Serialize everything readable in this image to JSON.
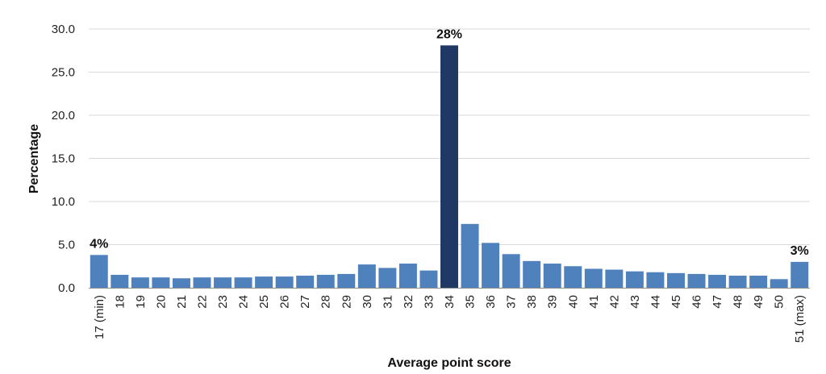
{
  "colors": {
    "bar": "#4f81bd",
    "highlight_bar": "#1f3864",
    "grid": "#d9d9d9",
    "axis": "#8c8c8c"
  },
  "chart_data": {
    "type": "bar",
    "title": "",
    "xlabel": "Average point score",
    "ylabel": "Percentage",
    "ylim": [
      0,
      30
    ],
    "yticks": [
      "0.0",
      "5.0",
      "10.0",
      "15.0",
      "20.0",
      "25.0",
      "30.0"
    ],
    "grid": "horizontal",
    "legend": "none",
    "categories": [
      "17 (min)",
      "18",
      "19",
      "20",
      "21",
      "22",
      "23",
      "24",
      "25",
      "26",
      "27",
      "28",
      "29",
      "30",
      "31",
      "32",
      "33",
      "34",
      "35",
      "36",
      "37",
      "38",
      "39",
      "40",
      "41",
      "42",
      "43",
      "44",
      "45",
      "46",
      "47",
      "48",
      "49",
      "50",
      "51 (max)"
    ],
    "values": [
      3.8,
      1.5,
      1.2,
      1.2,
      1.1,
      1.2,
      1.2,
      1.2,
      1.3,
      1.3,
      1.4,
      1.5,
      1.6,
      2.7,
      2.3,
      2.8,
      2.0,
      28.1,
      7.4,
      5.2,
      3.9,
      3.1,
      2.8,
      2.5,
      2.2,
      2.1,
      1.9,
      1.8,
      1.7,
      1.6,
      1.5,
      1.4,
      1.4,
      1.0,
      3.0
    ],
    "highlight_index": 17,
    "annotations": [
      {
        "category": "17 (min)",
        "text": "4%"
      },
      {
        "category": "34",
        "text": "28%"
      },
      {
        "category": "51 (max)",
        "text": "3%"
      }
    ]
  }
}
